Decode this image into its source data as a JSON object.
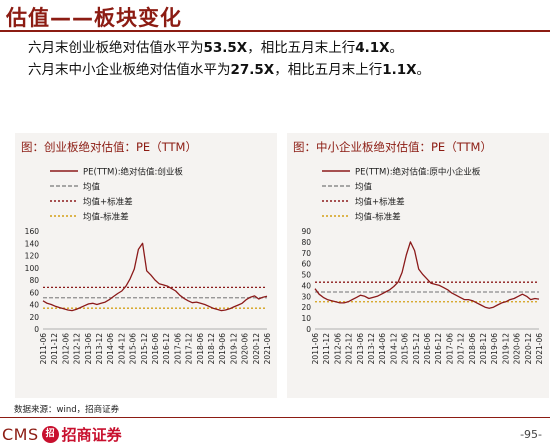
{
  "header": {
    "title": "估值——板块变化"
  },
  "bullets": [
    {
      "pre": "六月末创业板绝对估值水平为",
      "v1": "53.5X",
      "mid": "，相比五月末上行",
      "v2": "4.1X",
      "post": "。"
    },
    {
      "pre": "六月末中小企业板绝对估值水平为",
      "v1": "27.5X",
      "mid": "，相比五月末上行",
      "v2": "1.1X",
      "post": "。"
    }
  ],
  "colors": {
    "line": "#8b1a1a",
    "mean": "#8c8c8c",
    "upper": "#8b1a1a",
    "lower": "#d4a017",
    "accent": "#8c1c13"
  },
  "chart_data": [
    {
      "type": "line",
      "title": "图：创业板绝对估值：PE（TTM）",
      "series_name": "PE(TTM):绝对估值:创业板",
      "legend": [
        "PE(TTM):绝对估值:创业板",
        "均值",
        "均值+标准差",
        "均值-标准差"
      ],
      "ylim": [
        0,
        160
      ],
      "yticks": [
        "0",
        "20",
        "40",
        "60",
        "80",
        "100",
        "120",
        "140",
        "160"
      ],
      "xticks": [
        "2011-06",
        "2011-12",
        "2012-06",
        "2012-12",
        "2013-06",
        "2013-12",
        "2014-06",
        "2014-12",
        "2015-06",
        "2015-12",
        "2016-06",
        "2016-12",
        "2017-06",
        "2017-12",
        "2018-06",
        "2018-12",
        "2019-06",
        "2019-12",
        "2020-06",
        "2020-12",
        "2021-06"
      ],
      "mean": 51,
      "upper": 68,
      "lower": 34,
      "values": [
        46,
        42,
        40,
        37,
        35,
        33,
        31,
        30,
        32,
        35,
        38,
        41,
        42,
        40,
        42,
        44,
        48,
        53,
        58,
        62,
        70,
        82,
        98,
        130,
        140,
        95,
        88,
        80,
        74,
        72,
        70,
        66,
        62,
        55,
        50,
        46,
        43,
        44,
        42,
        40,
        37,
        34,
        32,
        30,
        31,
        33,
        36,
        39,
        42,
        48,
        52,
        54,
        49,
        52,
        53.5
      ]
    },
    {
      "type": "line",
      "title": "图：中小企业板绝对估值：PE（TTM）",
      "series_name": "PE(TTM):绝对估值:原中小企业板",
      "legend": [
        "PE(TTM):绝对估值:原中小企业板",
        "均值",
        "均值+标准差",
        "均值-标准差"
      ],
      "ylim": [
        0,
        90
      ],
      "yticks": [
        "0",
        "10",
        "20",
        "30",
        "40",
        "50",
        "60",
        "70",
        "80",
        "90"
      ],
      "xticks": [
        "2011-06",
        "2011-12",
        "2012-06",
        "2012-12",
        "2013-06",
        "2013-12",
        "2014-06",
        "2014-12",
        "2015-06",
        "2015-12",
        "2016-06",
        "2016-12",
        "2017-06",
        "2017-12",
        "2018-06",
        "2018-12",
        "2019-06",
        "2019-12",
        "2020-06",
        "2020-12",
        "2021-06"
      ],
      "mean": 34,
      "upper": 43,
      "lower": 25,
      "values": [
        37,
        32,
        29,
        27,
        26,
        25,
        24,
        24,
        25,
        27,
        29,
        31,
        30,
        28,
        29,
        30,
        32,
        34,
        36,
        39,
        43,
        52,
        68,
        80,
        72,
        55,
        50,
        46,
        42,
        41,
        40,
        38,
        36,
        33,
        31,
        29,
        27,
        27,
        26,
        24,
        22,
        20,
        19,
        20,
        22,
        24,
        25,
        27,
        28,
        30,
        32,
        30,
        27,
        28,
        27.5
      ]
    }
  ],
  "source": "数据来源：wind，招商证券",
  "footer": {
    "logo_text": "CMS",
    "logo_mark": "招",
    "brand": "招商证券",
    "page": "-95-"
  }
}
